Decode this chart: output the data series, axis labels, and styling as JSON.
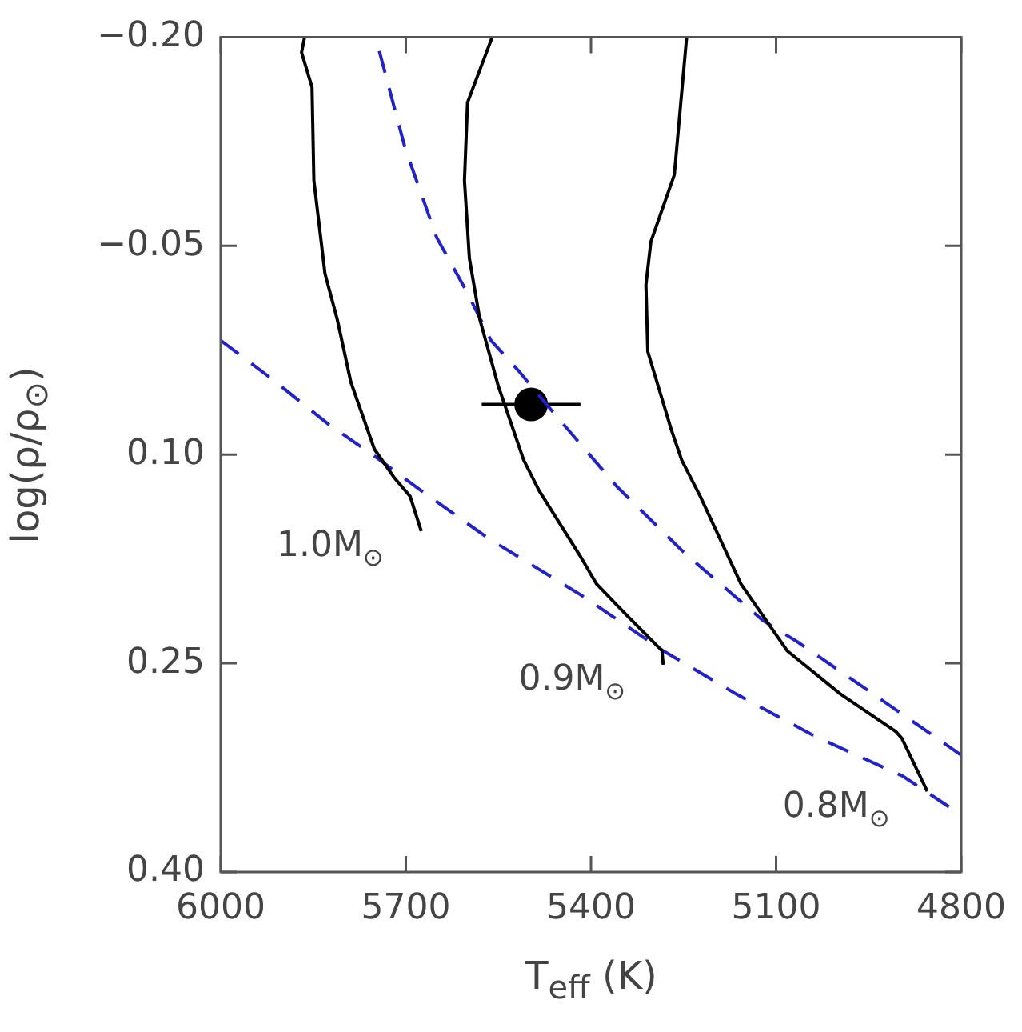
{
  "chart_data": {
    "type": "line",
    "xlabel": "T$_{eff}$ (K)",
    "ylabel": "log(ρ/ρ$_{⊙}$)",
    "xlim": [
      6000,
      4800
    ],
    "xticks": [
      6000,
      5700,
      5400,
      5100,
      4800
    ],
    "ylim": [
      0.4,
      -0.2
    ],
    "yticks": [
      {
        "value": -0.2,
        "label": "−0.20"
      },
      {
        "value": -0.05,
        "label": "−0.05"
      },
      {
        "value": 0.1,
        "label": "0.10"
      },
      {
        "value": 0.25,
        "label": "0.25"
      },
      {
        "value": 0.4,
        "label": "0.40"
      }
    ],
    "grid": false,
    "legend": false,
    "series": [
      {
        "name": "1.0M$_{⊙}$",
        "color": "#000000",
        "line_style": "solid",
        "marker": "none",
        "x": [
          5864,
          5869,
          5852,
          5849,
          5831,
          5811,
          5789,
          5751,
          5718,
          5693,
          5675
        ],
        "values": [
          -0.2,
          -0.189,
          -0.164,
          -0.097,
          -0.03,
          0.003,
          0.048,
          0.096,
          0.117,
          0.13,
          0.155
        ]
      },
      {
        "name": "0.9M$_{⊙}$",
        "color": "#000000",
        "line_style": "solid",
        "marker": "none",
        "x": [
          5560,
          5600,
          5605,
          5597,
          5580,
          5550,
          5509,
          5484,
          5416,
          5391,
          5341,
          5285,
          5283
        ],
        "values": [
          -0.2,
          -0.153,
          -0.097,
          -0.041,
          0.003,
          0.051,
          0.104,
          0.126,
          0.174,
          0.193,
          0.216,
          0.241,
          0.251
        ]
      },
      {
        "name": "0.8M$_{⊙}$",
        "color": "#000000",
        "line_style": "solid",
        "marker": "none",
        "x": [
          5245,
          5265,
          5303,
          5311,
          5308,
          5270,
          5253,
          5223,
          5157,
          5082,
          4996,
          4906,
          4896,
          4855
        ],
        "values": [
          -0.2,
          -0.101,
          -0.053,
          -0.022,
          0.026,
          0.082,
          0.104,
          0.13,
          0.193,
          0.241,
          0.272,
          0.299,
          0.304,
          0.342
        ]
      },
      {
        "color": "#2222cc",
        "line_style": "dashed",
        "marker": "none",
        "x": [
          5743,
          5701,
          5650,
          5600,
          5562,
          5517,
          5474,
          5416,
          5358,
          5248,
          5122,
          5064,
          4956,
          4800
        ],
        "values": [
          -0.19,
          -0.12,
          -0.056,
          -0.016,
          0.018,
          0.04,
          0.063,
          0.093,
          0.123,
          0.171,
          0.219,
          0.235,
          0.268,
          0.316
        ]
      },
      {
        "color": "#2222cc",
        "line_style": "dashed",
        "marker": "none",
        "x": [
          6000,
          5919,
          5826,
          5751,
          5675,
          5567,
          5416,
          5283,
          5165,
          5039,
          4895,
          4800
        ],
        "values": [
          0.018,
          0.045,
          0.078,
          0.101,
          0.126,
          0.16,
          0.201,
          0.241,
          0.272,
          0.302,
          0.331,
          0.359
        ]
      },
      {
        "type": "scatter",
        "color": "#000000",
        "marker": "circle",
        "x": [
          5497
        ],
        "values": [
          0.064
        ],
        "xerrors": [
          80
        ]
      }
    ]
  }
}
